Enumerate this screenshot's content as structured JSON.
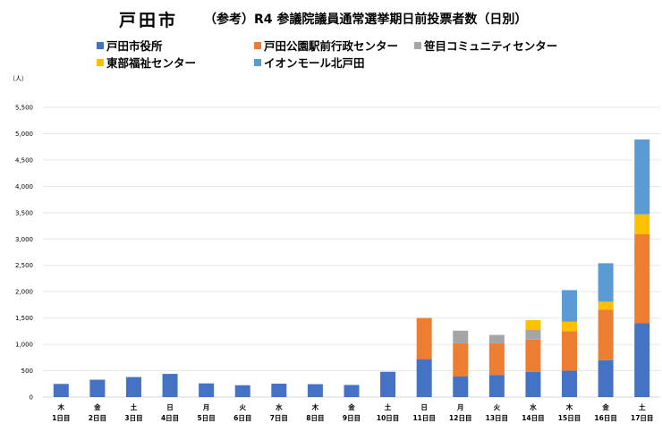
{
  "title": {
    "main": "戸田市",
    "sub": "（参考）R4 参議院議員通常選挙期日前投票者数（日別）"
  },
  "legend": [
    {
      "label": "戸田市役所",
      "color": "#4472C4"
    },
    {
      "label": "戸田公園駅前行政センター",
      "color": "#ED7D31"
    },
    {
      "label": "笹目コミュニティセンター",
      "color": "#A5A5A5"
    },
    {
      "label": "東部福祉センター",
      "color": "#FFC000"
    },
    {
      "label": "イオンモール北戸田",
      "color": "#5B9BD5"
    }
  ],
  "chart_data": {
    "type": "bar",
    "stacked": true,
    "unit_label": "（人）",
    "ylim": [
      0,
      5500
    ],
    "yticks": [
      "0",
      "500",
      "1,000",
      "1,500",
      "2,000",
      "2,500",
      "3,000",
      "3,500",
      "4,000",
      "4,500",
      "5,000",
      "5,500"
    ],
    "grid": true,
    "legend_position": "top",
    "categories": [
      {
        "weekday": "木",
        "day": "1日目"
      },
      {
        "weekday": "金",
        "day": "2日目"
      },
      {
        "weekday": "土",
        "day": "3日目"
      },
      {
        "weekday": "日",
        "day": "4日目"
      },
      {
        "weekday": "月",
        "day": "5日目"
      },
      {
        "weekday": "火",
        "day": "6日目"
      },
      {
        "weekday": "水",
        "day": "7日目"
      },
      {
        "weekday": "木",
        "day": "8日目"
      },
      {
        "weekday": "金",
        "day": "9日目"
      },
      {
        "weekday": "土",
        "day": "10日目"
      },
      {
        "weekday": "日",
        "day": "11日目"
      },
      {
        "weekday": "月",
        "day": "12日目"
      },
      {
        "weekday": "火",
        "day": "13日目"
      },
      {
        "weekday": "水",
        "day": "14日目"
      },
      {
        "weekday": "木",
        "day": "15日目"
      },
      {
        "weekday": "金",
        "day": "16日目"
      },
      {
        "weekday": "土",
        "day": "17日目"
      }
    ],
    "series": [
      {
        "name": "戸田市役所",
        "color": "#4472C4",
        "values": [
          250,
          330,
          380,
          440,
          260,
          225,
          255,
          245,
          230,
          480,
          720,
          390,
          420,
          480,
          500,
          700,
          1400
        ]
      },
      {
        "name": "戸田公園駅前行政センター",
        "color": "#ED7D31",
        "values": [
          0,
          0,
          0,
          0,
          0,
          0,
          0,
          0,
          0,
          0,
          780,
          630,
          600,
          610,
          750,
          960,
          1690
        ]
      },
      {
        "name": "笹目コミュニティセンター",
        "color": "#A5A5A5",
        "values": [
          0,
          0,
          0,
          0,
          0,
          0,
          0,
          0,
          0,
          0,
          0,
          240,
          160,
          190,
          0,
          0,
          0
        ]
      },
      {
        "name": "東部福祉センター",
        "color": "#FFC000",
        "values": [
          0,
          0,
          0,
          0,
          0,
          0,
          0,
          0,
          0,
          0,
          0,
          0,
          0,
          180,
          180,
          150,
          380
        ]
      },
      {
        "name": "イオンモール北戸田",
        "color": "#5B9BD5",
        "values": [
          0,
          0,
          0,
          0,
          0,
          0,
          0,
          0,
          0,
          0,
          0,
          0,
          0,
          0,
          600,
          730,
          1420
        ]
      }
    ]
  }
}
